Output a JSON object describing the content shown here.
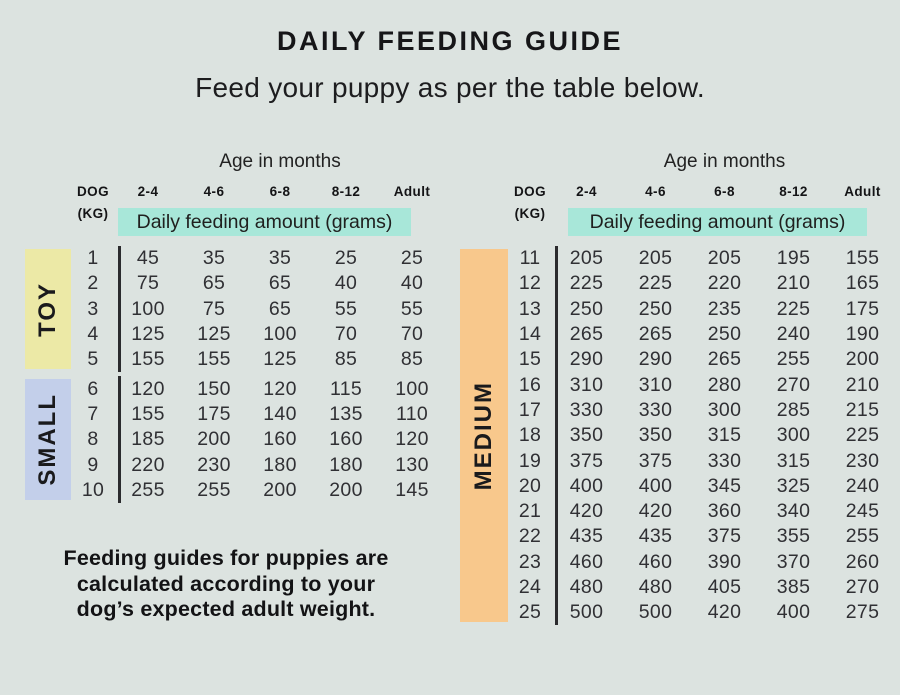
{
  "title": "DAILY FEEDING GUIDE",
  "subtitle": "Feed your puppy as per the table below.",
  "header": {
    "age_title": "Age in months",
    "dog_label": "DOG",
    "kg_label": "(KG)",
    "amount_label": "Daily feeding amount (grams)"
  },
  "footer_note": {
    "lines": [
      "Feeding guides for puppies are",
      "calculated according to your",
      "dog’s expected adult weight."
    ]
  },
  "colors": {
    "background": "#dce3e0",
    "text_dark": "#1d1d1f",
    "divider_line": "#2b2b2e",
    "highlight_teal": "#a8e7d9",
    "toy_yellow": "#ece9a6",
    "small_blue": "#c3cfea",
    "medium_orange": "#f8c88c"
  },
  "chart_data": {
    "type": "table",
    "title": "Daily feeding amount (grams) by dog adult weight (kg) and age in months",
    "columns_header": "Age in months",
    "row_header": "DOG (KG)",
    "age_columns": [
      "2-4",
      "4-6",
      "6-8",
      "8-12",
      "Adult"
    ],
    "value_label": "Daily feeding amount (grams)",
    "panels": [
      {
        "groups": [
          {
            "label": "TOY",
            "color": "#ece9a6",
            "rows": [
              [
                1,
                45,
                35,
                35,
                25,
                25
              ],
              [
                2,
                75,
                65,
                65,
                40,
                40
              ],
              [
                3,
                100,
                75,
                65,
                55,
                55
              ],
              [
                4,
                125,
                125,
                100,
                70,
                70
              ],
              [
                5,
                155,
                155,
                125,
                85,
                85
              ]
            ]
          },
          {
            "label": "SMALL",
            "color": "#c3cfea",
            "rows": [
              [
                6,
                120,
                150,
                120,
                115,
                100
              ],
              [
                7,
                155,
                175,
                140,
                135,
                110
              ],
              [
                8,
                185,
                200,
                160,
                160,
                120
              ],
              [
                9,
                220,
                230,
                180,
                180,
                130
              ],
              [
                10,
                255,
                255,
                200,
                200,
                145
              ]
            ]
          }
        ]
      },
      {
        "groups": [
          {
            "label": "MEDIUM",
            "color": "#f8c88c",
            "rows": [
              [
                11,
                205,
                205,
                205,
                195,
                155
              ],
              [
                12,
                225,
                225,
                220,
                210,
                165
              ],
              [
                13,
                250,
                250,
                235,
                225,
                175
              ],
              [
                14,
                265,
                265,
                250,
                240,
                190
              ],
              [
                15,
                290,
                290,
                265,
                255,
                200
              ],
              [
                16,
                310,
                310,
                280,
                270,
                210
              ],
              [
                17,
                330,
                330,
                300,
                285,
                215
              ],
              [
                18,
                350,
                350,
                315,
                300,
                225
              ],
              [
                19,
                375,
                375,
                330,
                315,
                230
              ],
              [
                20,
                400,
                400,
                345,
                325,
                240
              ],
              [
                21,
                420,
                420,
                360,
                340,
                245
              ],
              [
                22,
                435,
                435,
                375,
                355,
                255
              ],
              [
                23,
                460,
                460,
                390,
                370,
                260
              ],
              [
                24,
                480,
                480,
                405,
                385,
                270
              ],
              [
                25,
                500,
                500,
                420,
                400,
                275
              ]
            ]
          }
        ]
      }
    ]
  }
}
